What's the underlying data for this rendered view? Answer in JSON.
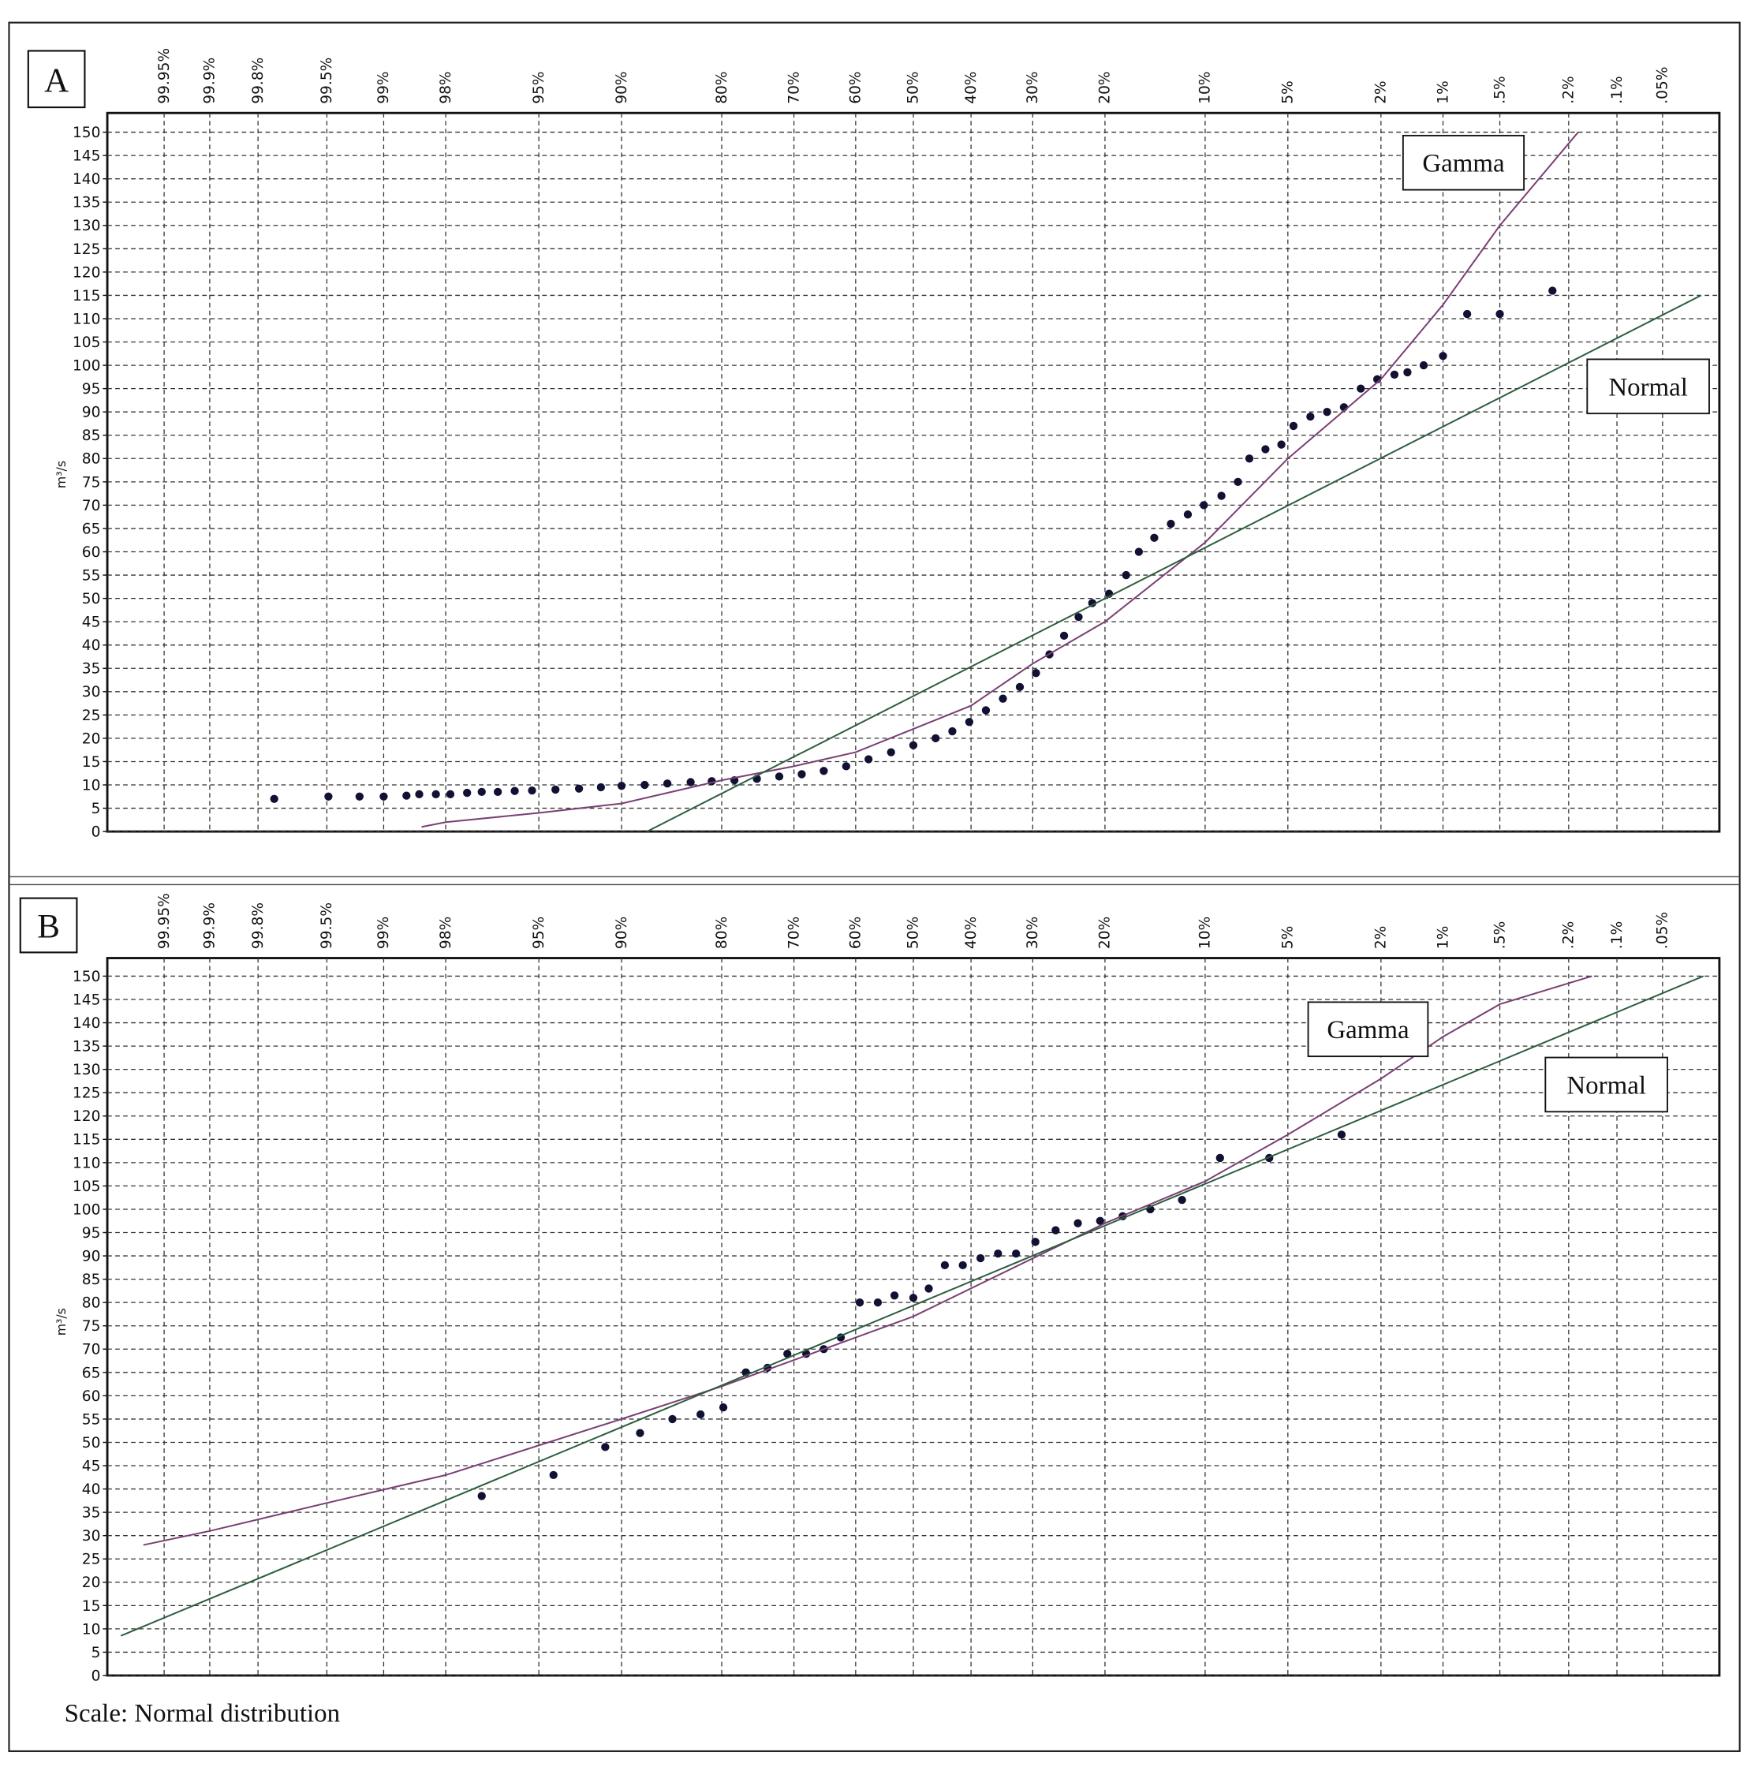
{
  "footer": "Scale: Normal distribution",
  "chart_data": [
    {
      "type": "scatter",
      "label": "A",
      "xscale": "probability",
      "ylabel": "m³/s",
      "grid": true,
      "xlim": [
        99.98,
        0.02
      ],
      "ylim": [
        0,
        150
      ],
      "xticks": [
        {
          "value": 99.95,
          "label": "99.95%"
        },
        {
          "value": 99.9,
          "label": "99.9%"
        },
        {
          "value": 99.8,
          "label": "99.8%"
        },
        {
          "value": 99.5,
          "label": "99.5%"
        },
        {
          "value": 99,
          "label": "99%"
        },
        {
          "value": 98,
          "label": "98%"
        },
        {
          "value": 95,
          "label": "95%"
        },
        {
          "value": 90,
          "label": "90%"
        },
        {
          "value": 80,
          "label": "80%"
        },
        {
          "value": 70,
          "label": "70%"
        },
        {
          "value": 60,
          "label": "60%"
        },
        {
          "value": 50,
          "label": "50%"
        },
        {
          "value": 40,
          "label": "40%"
        },
        {
          "value": 30,
          "label": "30%"
        },
        {
          "value": 20,
          "label": "20%"
        },
        {
          "value": 10,
          "label": "10%"
        },
        {
          "value": 5,
          "label": "5%"
        },
        {
          "value": 2,
          "label": "2%"
        },
        {
          "value": 1,
          "label": "1%"
        },
        {
          "value": 0.5,
          "label": ".5%"
        },
        {
          "value": 0.2,
          "label": ".2%"
        },
        {
          "value": 0.1,
          "label": ".1%"
        },
        {
          "value": 0.05,
          "label": ".05%"
        }
      ],
      "yticks": [
        0,
        5,
        10,
        15,
        20,
        25,
        30,
        35,
        40,
        45,
        50,
        55,
        60,
        65,
        70,
        75,
        80,
        85,
        90,
        95,
        100,
        105,
        110,
        115,
        120,
        125,
        130,
        135,
        140,
        145,
        150
      ],
      "series": [
        {
          "color": "#111133",
          "style": "points",
          "x": [
            99.75,
            99.49,
            99.25,
            99.0,
            98.7,
            98.5,
            98.2,
            97.9,
            97.5,
            97.1,
            96.6,
            96.0,
            95.3,
            94.2,
            92.9,
            91.5,
            90.0,
            88.1,
            86.0,
            83.6,
            81.2,
            78.4,
            75.4,
            72.2,
            68.8,
            65.3,
            61.6,
            57.8,
            53.9,
            50,
            46.1,
            43.2,
            40.3,
            37.5,
            34.7,
            32.0,
            29.5,
            27.5,
            25.4,
            23.4,
            21.6,
            19.5,
            17.5,
            16.1,
            14.5,
            12.9,
            11.4,
            10.1,
            8.8,
            7.7,
            7.0,
            6.1,
            5.3,
            4.75,
            4.06,
            3.46,
            2.93,
            2.47,
            2.08,
            1.73,
            1.5,
            1.25,
            1.0,
            0.75,
            0.5,
            0.25
          ],
          "values": [
            7,
            7.5,
            7.5,
            7.5,
            7.7,
            8,
            8,
            8,
            8.3,
            8.5,
            8.5,
            8.7,
            8.8,
            9,
            9.2,
            9.5,
            9.8,
            10,
            10.3,
            10.6,
            10.8,
            11,
            11.3,
            11.8,
            12.3,
            13,
            14,
            15.5,
            17,
            18.5,
            20,
            21.5,
            23.5,
            26,
            28.5,
            31,
            34,
            38,
            42,
            46,
            49,
            51,
            55,
            60,
            63,
            66,
            68,
            70,
            72,
            75,
            80,
            82,
            83,
            87,
            89,
            90,
            91,
            95,
            97,
            98,
            98.5,
            100,
            102,
            111,
            111,
            116
          ]
        },
        {
          "name": "Gamma",
          "color": "#7b3f74",
          "style": "line",
          "x": [
            98.46,
            98,
            95,
            90,
            80,
            70,
            60,
            50,
            40,
            30,
            20,
            10,
            5,
            2,
            1,
            0.5,
            0.175
          ],
          "values": [
            1,
            2,
            4,
            6,
            11,
            14,
            17,
            22,
            27,
            36,
            45,
            62,
            80,
            97,
            113,
            130,
            150
          ]
        },
        {
          "name": "Normal",
          "color": "#2e5e3e",
          "style": "line",
          "x": [
            87.9,
            0.027
          ],
          "values": [
            0,
            115
          ]
        }
      ]
    },
    {
      "type": "scatter",
      "label": "B",
      "xscale": "probability",
      "ylabel": "m³/s",
      "grid": true,
      "xlim": [
        99.98,
        0.02
      ],
      "ylim": [
        0,
        150
      ],
      "xticks": [
        {
          "value": 99.95,
          "label": "99.95%"
        },
        {
          "value": 99.9,
          "label": "99.9%"
        },
        {
          "value": 99.8,
          "label": "99.8%"
        },
        {
          "value": 99.5,
          "label": "99.5%"
        },
        {
          "value": 99,
          "label": "99%"
        },
        {
          "value": 98,
          "label": "98%"
        },
        {
          "value": 95,
          "label": "95%"
        },
        {
          "value": 90,
          "label": "90%"
        },
        {
          "value": 80,
          "label": "80%"
        },
        {
          "value": 70,
          "label": "70%"
        },
        {
          "value": 60,
          "label": "60%"
        },
        {
          "value": 50,
          "label": "50%"
        },
        {
          "value": 40,
          "label": "40%"
        },
        {
          "value": 30,
          "label": "30%"
        },
        {
          "value": 20,
          "label": "20%"
        },
        {
          "value": 10,
          "label": "10%"
        },
        {
          "value": 5,
          "label": "5%"
        },
        {
          "value": 2,
          "label": "2%"
        },
        {
          "value": 1,
          "label": "1%"
        },
        {
          "value": 0.5,
          "label": ".5%"
        },
        {
          "value": 0.2,
          "label": ".2%"
        },
        {
          "value": 0.1,
          "label": ".1%"
        },
        {
          "value": 0.05,
          "label": ".05%"
        }
      ],
      "yticks": [
        0,
        5,
        10,
        15,
        20,
        25,
        30,
        35,
        40,
        45,
        50,
        55,
        60,
        65,
        70,
        75,
        80,
        85,
        90,
        95,
        100,
        105,
        110,
        115,
        120,
        125,
        130,
        135,
        140,
        145,
        150
      ],
      "series": [
        {
          "color": "#111133",
          "style": "points",
          "x": [
            97.1,
            94.3,
            91.2,
            88.5,
            85.5,
            82.5,
            79.8,
            76.9,
            73.9,
            71.0,
            68.1,
            65.3,
            62.5,
            59.3,
            56.2,
            53.3,
            50,
            47.3,
            44.5,
            41.4,
            38.4,
            35.5,
            32.6,
            29.6,
            26.6,
            23.5,
            20.6,
            17.9,
            14.9,
            11.9,
            8.9,
            5.9,
            3.0
          ],
          "values": [
            38.5,
            43,
            49,
            52,
            55,
            56,
            57.5,
            65,
            66,
            69,
            69,
            70,
            72.5,
            80,
            80,
            81.5,
            81,
            83,
            88,
            88,
            89.5,
            90.5,
            90.5,
            93,
            95.5,
            97,
            97.5,
            98.5,
            100,
            102,
            111,
            111,
            116
          ]
        },
        {
          "name": "Gamma",
          "color": "#7b3f74",
          "style": "line",
          "x": [
            99.964,
            99.9,
            99.5,
            98,
            90,
            80,
            50,
            20,
            10,
            5,
            2,
            1,
            0.5,
            0.144
          ],
          "values": [
            28,
            31,
            37,
            43,
            55,
            62,
            77,
            97,
            106,
            116,
            128,
            137,
            144,
            150
          ]
        },
        {
          "name": "Normal",
          "color": "#2e5e3e",
          "style": "line",
          "x": [
            99.975,
            0.026
          ],
          "values": [
            8.5,
            150
          ]
        }
      ]
    }
  ]
}
